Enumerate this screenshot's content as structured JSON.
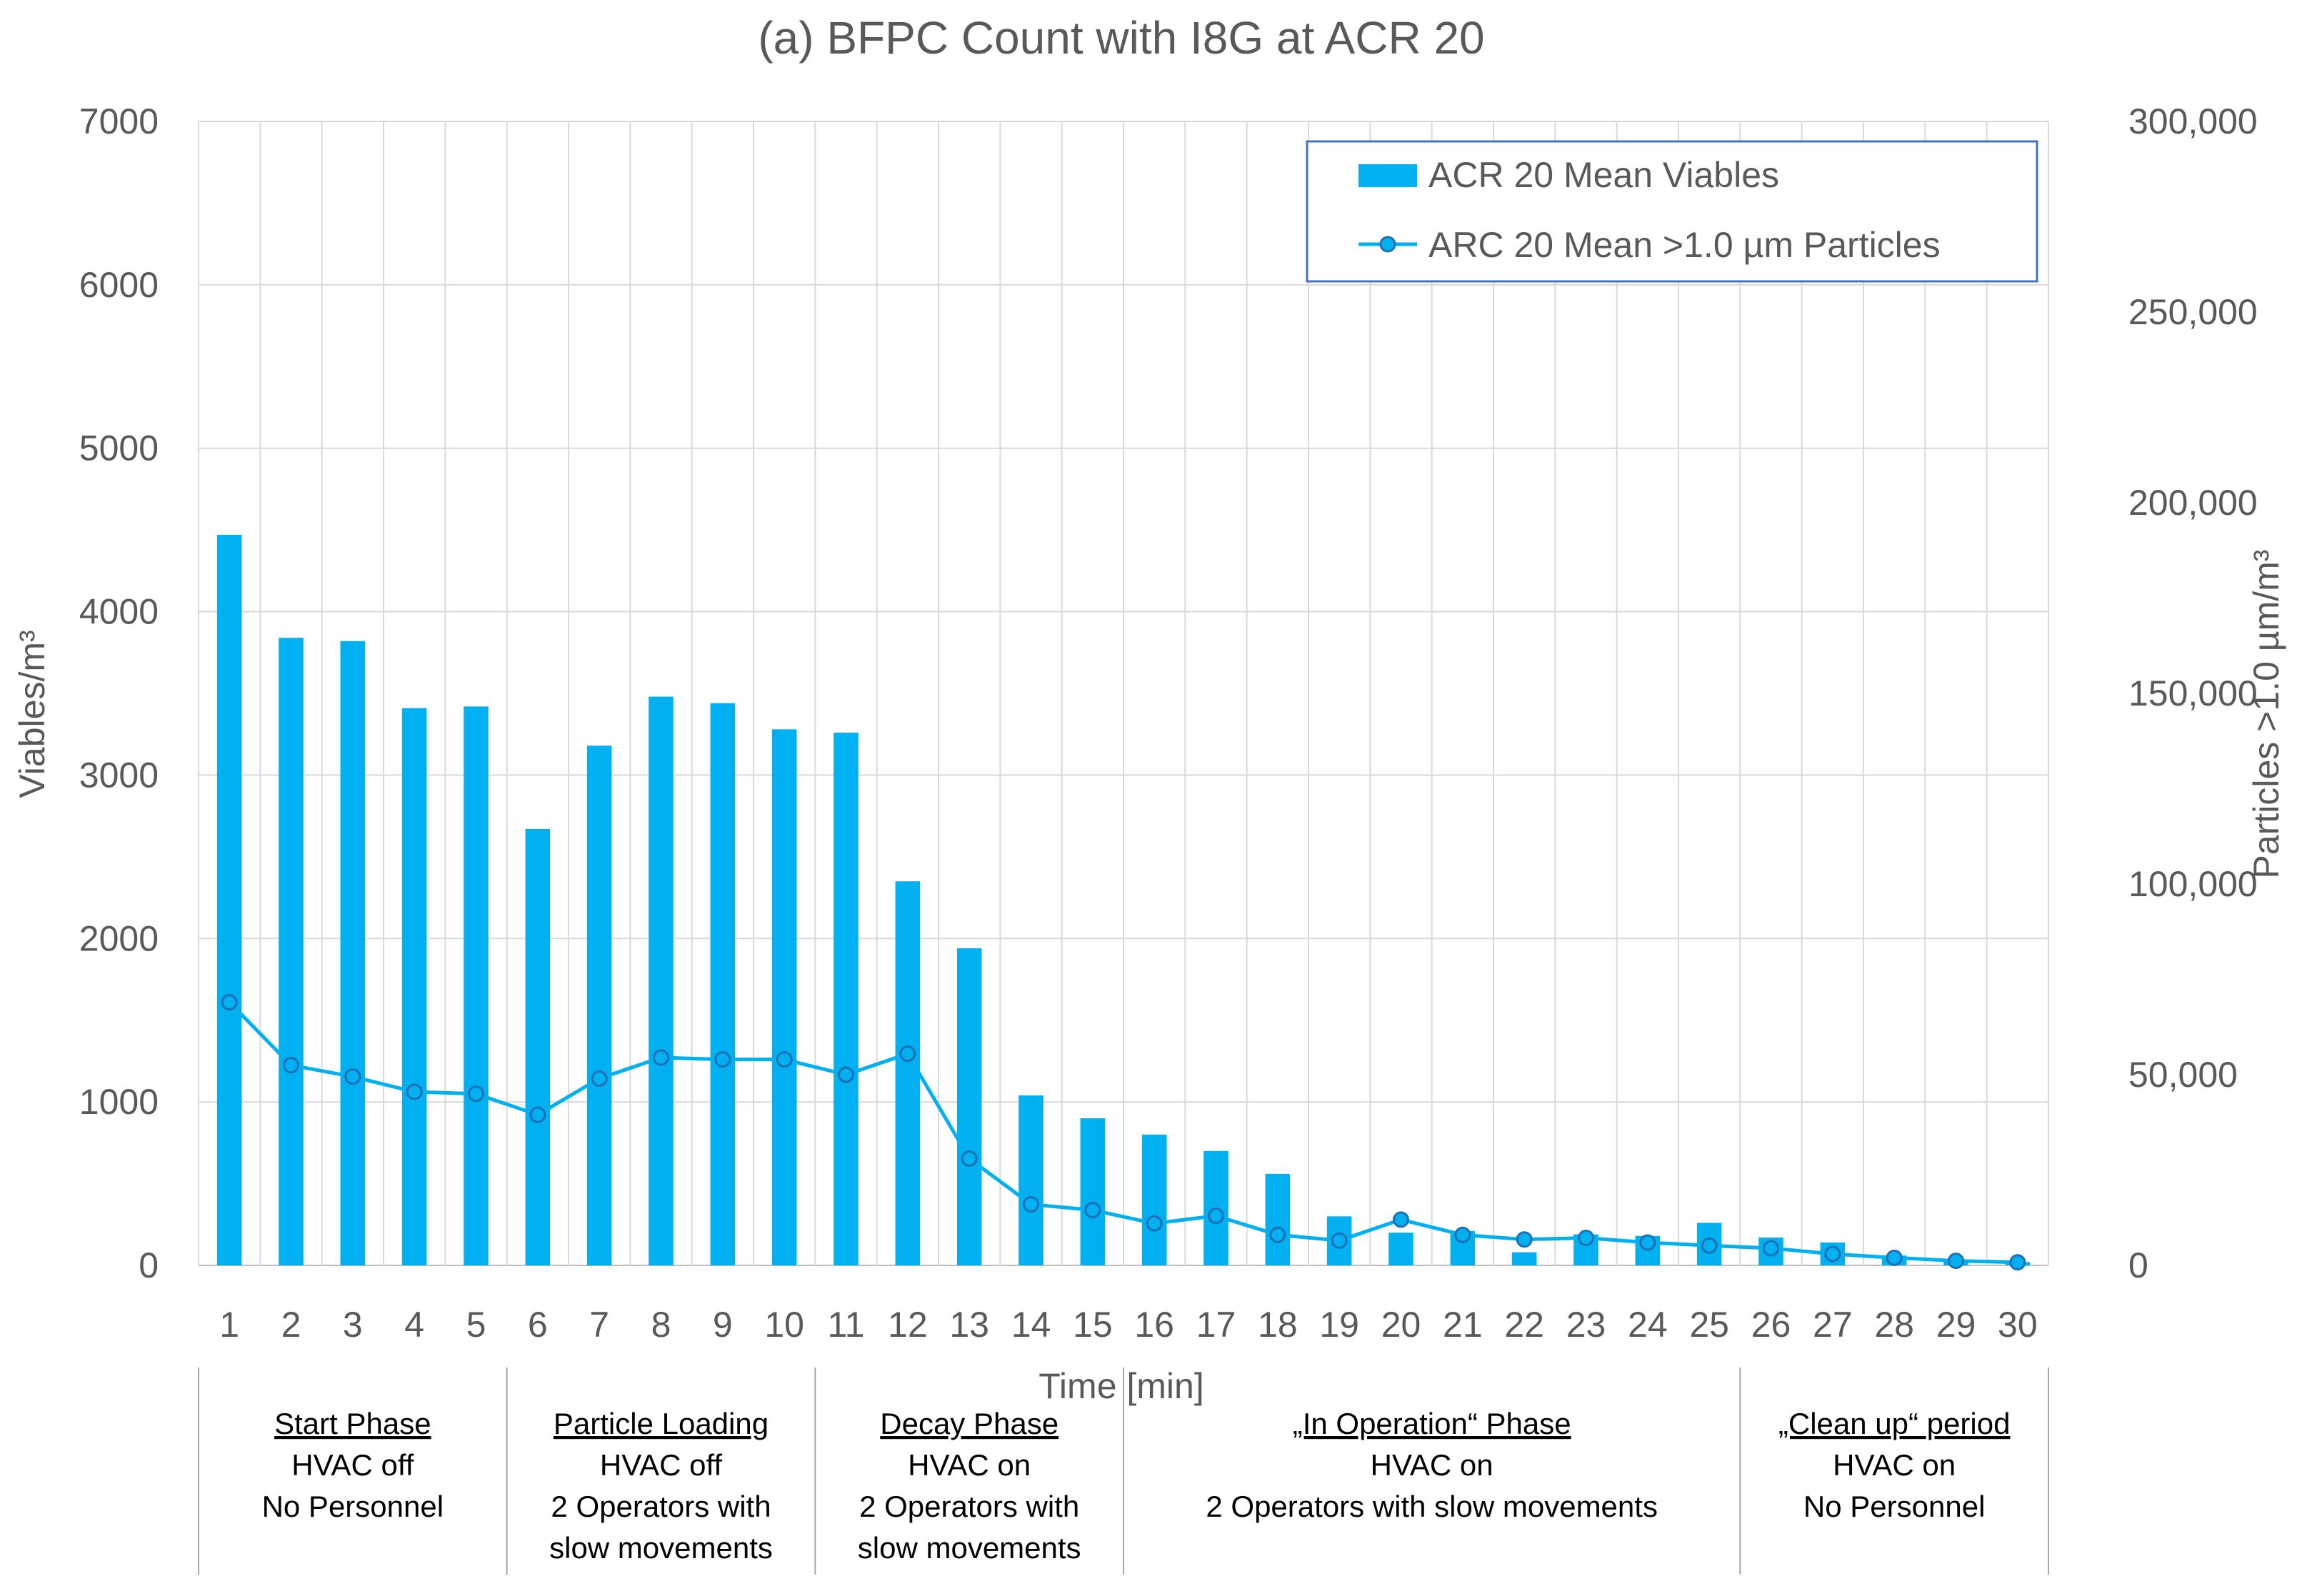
{
  "chart_data": {
    "type": "bar",
    "title": "(a) BFPC Count with I8G at ACR 20",
    "xlabel": "Time [min]",
    "ylabel": "Viables/m³",
    "y2label": "Particles >1.0 µm/m³",
    "ylim": [
      0,
      7000
    ],
    "y2lim": [
      0,
      300000
    ],
    "yticks": [
      "0",
      "1000",
      "2000",
      "3000",
      "4000",
      "5000",
      "6000",
      "7000"
    ],
    "y2ticks": [
      "0",
      "50,000",
      "100,000",
      "150,000",
      "200,000",
      "250,000",
      "300,000"
    ],
    "categories": [
      "1",
      "2",
      "3",
      "4",
      "5",
      "6",
      "7",
      "8",
      "9",
      "10",
      "11",
      "12",
      "13",
      "14",
      "15",
      "16",
      "17",
      "18",
      "19",
      "20",
      "21",
      "22",
      "23",
      "24",
      "25",
      "26",
      "27",
      "28",
      "29",
      "30"
    ],
    "legend_position": "top-right",
    "series": [
      {
        "name": "ACR 20 Mean Viables",
        "kind": "bar",
        "axis": "left",
        "color": "#00B0F0",
        "values": [
          4470,
          3840,
          3820,
          3410,
          3420,
          2670,
          3180,
          3480,
          3440,
          3280,
          3260,
          2350,
          1940,
          1040,
          900,
          800,
          700,
          560,
          300,
          200,
          210,
          80,
          190,
          180,
          260,
          170,
          140,
          60,
          30,
          20
        ]
      },
      {
        "name": "ARC 20 Mean >1.0 µm Particles",
        "kind": "line",
        "axis": "right",
        "color": "#00B0F0",
        "values": [
          69000,
          52500,
          49500,
          45500,
          45000,
          39500,
          49000,
          54500,
          54000,
          54000,
          50000,
          55500,
          28000,
          16000,
          14500,
          11000,
          13000,
          8000,
          6500,
          12000,
          8000,
          6800,
          7200,
          6000,
          5200,
          4500,
          3000,
          2000,
          1200,
          800
        ]
      }
    ],
    "phases": [
      {
        "name": "Start Phase",
        "lines": [
          "HVAC off",
          "No Personnel"
        ]
      },
      {
        "name": "Particle Loading",
        "lines": [
          "HVAC off",
          "2 Operators with",
          "slow movements"
        ]
      },
      {
        "name": "Decay Phase",
        "lines": [
          "HVAC on",
          "2 Operators with",
          "slow movements"
        ]
      },
      {
        "name": "„In Operation“ Phase",
        "lines": [
          "HVAC on",
          "2 Operators with slow movements"
        ]
      },
      {
        "name": "„Clean up“ period",
        "lines": [
          "HVAC on",
          "No Personnel"
        ]
      }
    ]
  }
}
